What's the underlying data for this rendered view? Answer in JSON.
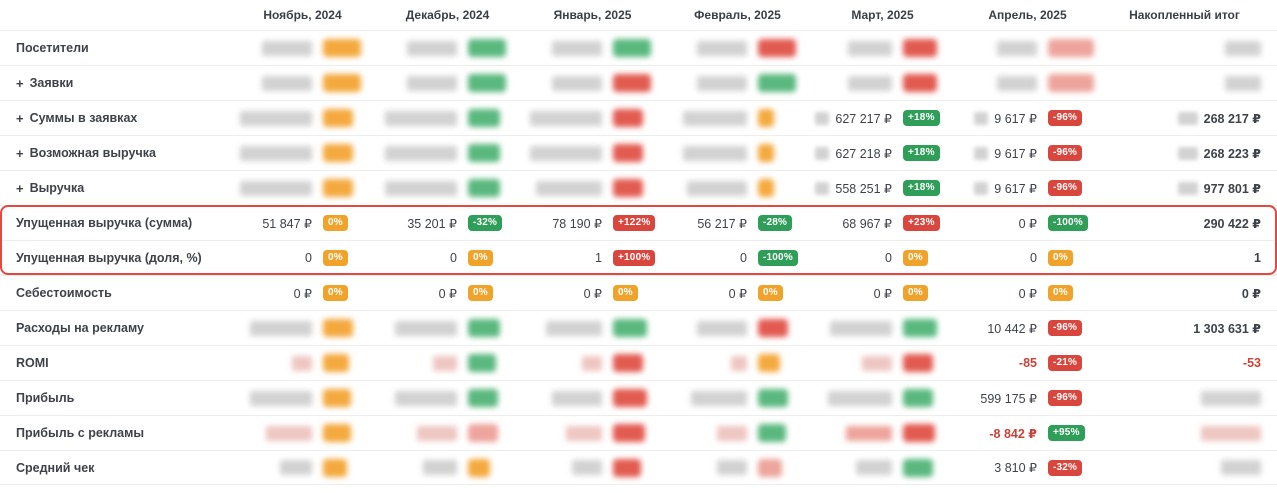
{
  "columns": [
    "Ноябрь, 2024",
    "Декабрь, 2024",
    "Январь, 2025",
    "Февраль, 2025",
    "Март, 2025",
    "Апрель, 2025",
    "Накопленный итог"
  ],
  "palette": {
    "gray": "#d2d2d2",
    "orange": "#f4a93e",
    "green": "#5ab87e",
    "red": "#e25b51",
    "salmon": "#eda49c",
    "pink": "#eec6c1"
  },
  "badge_colors": {
    "orange": "#f0a32b",
    "green": "#2e9e58",
    "red": "#d8463e"
  },
  "highlight_color": "#e3493e",
  "rows": [
    {
      "label": "Посетители",
      "plus": false,
      "hl": false,
      "cells": [
        {
          "blob": [
            "gray",
            50
          ],
          "badge_blob": [
            "orange",
            38
          ]
        },
        {
          "blob": [
            "gray",
            50
          ],
          "badge_blob": [
            "green",
            38
          ]
        },
        {
          "blob": [
            "gray",
            50
          ],
          "badge_blob": [
            "green",
            38
          ]
        },
        {
          "blob": [
            "gray",
            50
          ],
          "badge_blob": [
            "red",
            38
          ]
        },
        {
          "blob": [
            "gray",
            44
          ],
          "badge_blob": [
            "red",
            34
          ]
        },
        {
          "blob": [
            "gray",
            40
          ],
          "badge_blob": [
            "salmon",
            46
          ]
        }
      ],
      "total": {
        "blob": [
          "gray",
          36
        ]
      }
    },
    {
      "label": "Заявки",
      "plus": true,
      "hl": false,
      "cells": [
        {
          "blob": [
            "gray",
            50
          ],
          "badge_blob": [
            "orange",
            38
          ]
        },
        {
          "blob": [
            "gray",
            50
          ],
          "badge_blob": [
            "green",
            38
          ]
        },
        {
          "blob": [
            "gray",
            50
          ],
          "badge_blob": [
            "red",
            38
          ]
        },
        {
          "blob": [
            "gray",
            50
          ],
          "badge_blob": [
            "green",
            38
          ]
        },
        {
          "blob": [
            "gray",
            44
          ],
          "badge_blob": [
            "red",
            34
          ]
        },
        {
          "blob": [
            "gray",
            40
          ],
          "badge_blob": [
            "salmon",
            46
          ]
        }
      ],
      "total": {
        "blob": [
          "gray",
          36
        ]
      }
    },
    {
      "label": "Суммы в заявках",
      "plus": true,
      "hl": false,
      "cells": [
        {
          "blob": [
            "gray",
            72
          ],
          "badge_blob": [
            "orange",
            30
          ]
        },
        {
          "blob": [
            "gray",
            72
          ],
          "badge_blob": [
            "green",
            32
          ]
        },
        {
          "blob": [
            "gray",
            72
          ],
          "badge_blob": [
            "red",
            30
          ]
        },
        {
          "blob": [
            "gray",
            64
          ],
          "badge_blob": [
            "orange",
            16
          ]
        },
        {
          "pre": 14,
          "value": "627 217 ₽",
          "badge": "+18%",
          "bc": "green"
        },
        {
          "pre": 14,
          "value": "9 617 ₽",
          "badge": "-96%",
          "bc": "red"
        }
      ],
      "total": {
        "pre": 20,
        "value": "268 217 ₽"
      }
    },
    {
      "label": "Возможная выручка",
      "plus": true,
      "hl": false,
      "cells": [
        {
          "blob": [
            "gray",
            72
          ],
          "badge_blob": [
            "orange",
            30
          ]
        },
        {
          "blob": [
            "gray",
            72
          ],
          "badge_blob": [
            "green",
            32
          ]
        },
        {
          "blob": [
            "gray",
            72
          ],
          "badge_blob": [
            "red",
            30
          ]
        },
        {
          "blob": [
            "gray",
            64
          ],
          "badge_blob": [
            "orange",
            16
          ]
        },
        {
          "pre": 14,
          "value": "627 218 ₽",
          "badge": "+18%",
          "bc": "green"
        },
        {
          "pre": 14,
          "value": "9 617 ₽",
          "badge": "-96%",
          "bc": "red"
        }
      ],
      "total": {
        "pre": 20,
        "value": "268 223 ₽"
      }
    },
    {
      "label": "Выручка",
      "plus": true,
      "hl": false,
      "cells": [
        {
          "blob": [
            "gray",
            72
          ],
          "badge_blob": [
            "orange",
            30
          ]
        },
        {
          "blob": [
            "gray",
            72
          ],
          "badge_blob": [
            "green",
            32
          ]
        },
        {
          "blob": [
            "gray",
            66
          ],
          "badge_blob": [
            "red",
            30
          ]
        },
        {
          "blob": [
            "gray",
            60
          ],
          "badge_blob": [
            "orange",
            16
          ]
        },
        {
          "pre": 14,
          "value": "558 251 ₽",
          "badge": "+18%",
          "bc": "green"
        },
        {
          "pre": 14,
          "value": "9 617 ₽",
          "badge": "-96%",
          "bc": "red"
        }
      ],
      "total": {
        "pre": 20,
        "value": "977 801 ₽"
      }
    },
    {
      "label": "Упущенная выручка (сумма)",
      "plus": false,
      "hl": true,
      "cells": [
        {
          "value": "51 847 ₽",
          "badge": "0%",
          "bc": "orange"
        },
        {
          "value": "35 201 ₽",
          "badge": "-32%",
          "bc": "green"
        },
        {
          "value": "78 190 ₽",
          "badge": "+122%",
          "bc": "red"
        },
        {
          "value": "56 217 ₽",
          "badge": "-28%",
          "bc": "green"
        },
        {
          "value": "68 967 ₽",
          "badge": "+23%",
          "bc": "red"
        },
        {
          "value": "0 ₽",
          "badge": "-100%",
          "bc": "green"
        }
      ],
      "total": {
        "value": "290 422 ₽"
      }
    },
    {
      "label": "Упущенная выручка (доля, %)",
      "plus": false,
      "hl": true,
      "cells": [
        {
          "value": "0",
          "badge": "0%",
          "bc": "orange"
        },
        {
          "value": "0",
          "badge": "0%",
          "bc": "orange"
        },
        {
          "value": "1",
          "badge": "+100%",
          "bc": "red"
        },
        {
          "value": "0",
          "badge": "-100%",
          "bc": "green"
        },
        {
          "value": "0",
          "badge": "0%",
          "bc": "orange"
        },
        {
          "value": "0",
          "badge": "0%",
          "bc": "orange"
        }
      ],
      "total": {
        "value": "1"
      }
    },
    {
      "label": "Себестоимость",
      "plus": false,
      "hl": false,
      "cells": [
        {
          "value": "0 ₽",
          "badge": "0%",
          "bc": "orange"
        },
        {
          "value": "0 ₽",
          "badge": "0%",
          "bc": "orange"
        },
        {
          "value": "0 ₽",
          "badge": "0%",
          "bc": "orange"
        },
        {
          "value": "0 ₽",
          "badge": "0%",
          "bc": "orange"
        },
        {
          "value": "0 ₽",
          "badge": "0%",
          "bc": "orange"
        },
        {
          "value": "0 ₽",
          "badge": "0%",
          "bc": "orange"
        }
      ],
      "total": {
        "value": "0 ₽"
      }
    },
    {
      "label": "Расходы на рекламу",
      "plus": false,
      "hl": false,
      "cells": [
        {
          "blob": [
            "gray",
            62
          ],
          "badge_blob": [
            "orange",
            30
          ]
        },
        {
          "blob": [
            "gray",
            62
          ],
          "badge_blob": [
            "green",
            32
          ]
        },
        {
          "blob": [
            "gray",
            56
          ],
          "badge_blob": [
            "green",
            34
          ]
        },
        {
          "blob": [
            "gray",
            50
          ],
          "badge_blob": [
            "red",
            30
          ]
        },
        {
          "blob": [
            "gray",
            62
          ],
          "badge_blob": [
            "green",
            34
          ]
        },
        {
          "value": "10 442 ₽",
          "badge": "-96%",
          "bc": "red"
        }
      ],
      "total": {
        "value": "1 303 631 ₽"
      }
    },
    {
      "label": "ROMI",
      "plus": false,
      "hl": false,
      "cells": [
        {
          "blob": [
            "pink",
            20
          ],
          "badge_blob": [
            "orange",
            26
          ]
        },
        {
          "blob": [
            "pink",
            24
          ],
          "badge_blob": [
            "green",
            28
          ]
        },
        {
          "blob": [
            "pink",
            20
          ],
          "badge_blob": [
            "red",
            30
          ]
        },
        {
          "blob": [
            "pink",
            16
          ],
          "badge_blob": [
            "orange",
            22
          ]
        },
        {
          "blob": [
            "pink",
            30
          ],
          "badge_blob": [
            "red",
            30
          ]
        },
        {
          "value": "-85",
          "red": true,
          "badge": "-21%",
          "bc": "red"
        }
      ],
      "total": {
        "value": "-53",
        "red": true
      }
    },
    {
      "label": "Прибыль",
      "plus": false,
      "hl": false,
      "cells": [
        {
          "blob": [
            "gray",
            62
          ],
          "badge_blob": [
            "orange",
            28
          ]
        },
        {
          "blob": [
            "gray",
            62
          ],
          "badge_blob": [
            "green",
            30
          ]
        },
        {
          "blob": [
            "gray",
            50
          ],
          "badge_blob": [
            "red",
            34
          ]
        },
        {
          "blob": [
            "gray",
            56
          ],
          "badge_blob": [
            "green",
            30
          ]
        },
        {
          "blob": [
            "gray",
            64
          ],
          "badge_blob": [
            "green",
            30
          ]
        },
        {
          "value": "599 175 ₽",
          "badge": "-96%",
          "bc": "red"
        }
      ],
      "total": {
        "blob": [
          "gray",
          60
        ]
      }
    },
    {
      "label": "Прибыль с рекламы",
      "plus": false,
      "hl": false,
      "cells": [
        {
          "blob": [
            "pink",
            46
          ],
          "badge_blob": [
            "orange",
            28
          ]
        },
        {
          "blob": [
            "pink",
            40
          ],
          "badge_blob": [
            "salmon",
            30
          ]
        },
        {
          "blob": [
            "pink",
            36
          ],
          "badge_blob": [
            "red",
            32
          ]
        },
        {
          "blob": [
            "pink",
            30
          ],
          "badge_blob": [
            "green",
            28
          ]
        },
        {
          "blob": [
            "salmon",
            46
          ],
          "badge_blob": [
            "red",
            32
          ]
        },
        {
          "value": "-8 842 ₽",
          "red": true,
          "badge": "+95%",
          "bc": "green"
        }
      ],
      "total": {
        "blob": [
          "pink",
          60
        ]
      }
    },
    {
      "label": "Средний чек",
      "plus": false,
      "hl": false,
      "cells": [
        {
          "blob": [
            "gray",
            32
          ],
          "badge_blob": [
            "orange",
            24
          ]
        },
        {
          "blob": [
            "gray",
            34
          ],
          "badge_blob": [
            "orange",
            22
          ]
        },
        {
          "blob": [
            "gray",
            30
          ],
          "badge_blob": [
            "red",
            28
          ]
        },
        {
          "blob": [
            "gray",
            30
          ],
          "badge_blob": [
            "salmon",
            24
          ]
        },
        {
          "blob": [
            "gray",
            36
          ],
          "badge_blob": [
            "green",
            30
          ]
        },
        {
          "value": "3 810 ₽",
          "badge": "-32%",
          "bc": "red"
        }
      ],
      "total": {
        "blob": [
          "gray",
          40
        ]
      }
    }
  ]
}
